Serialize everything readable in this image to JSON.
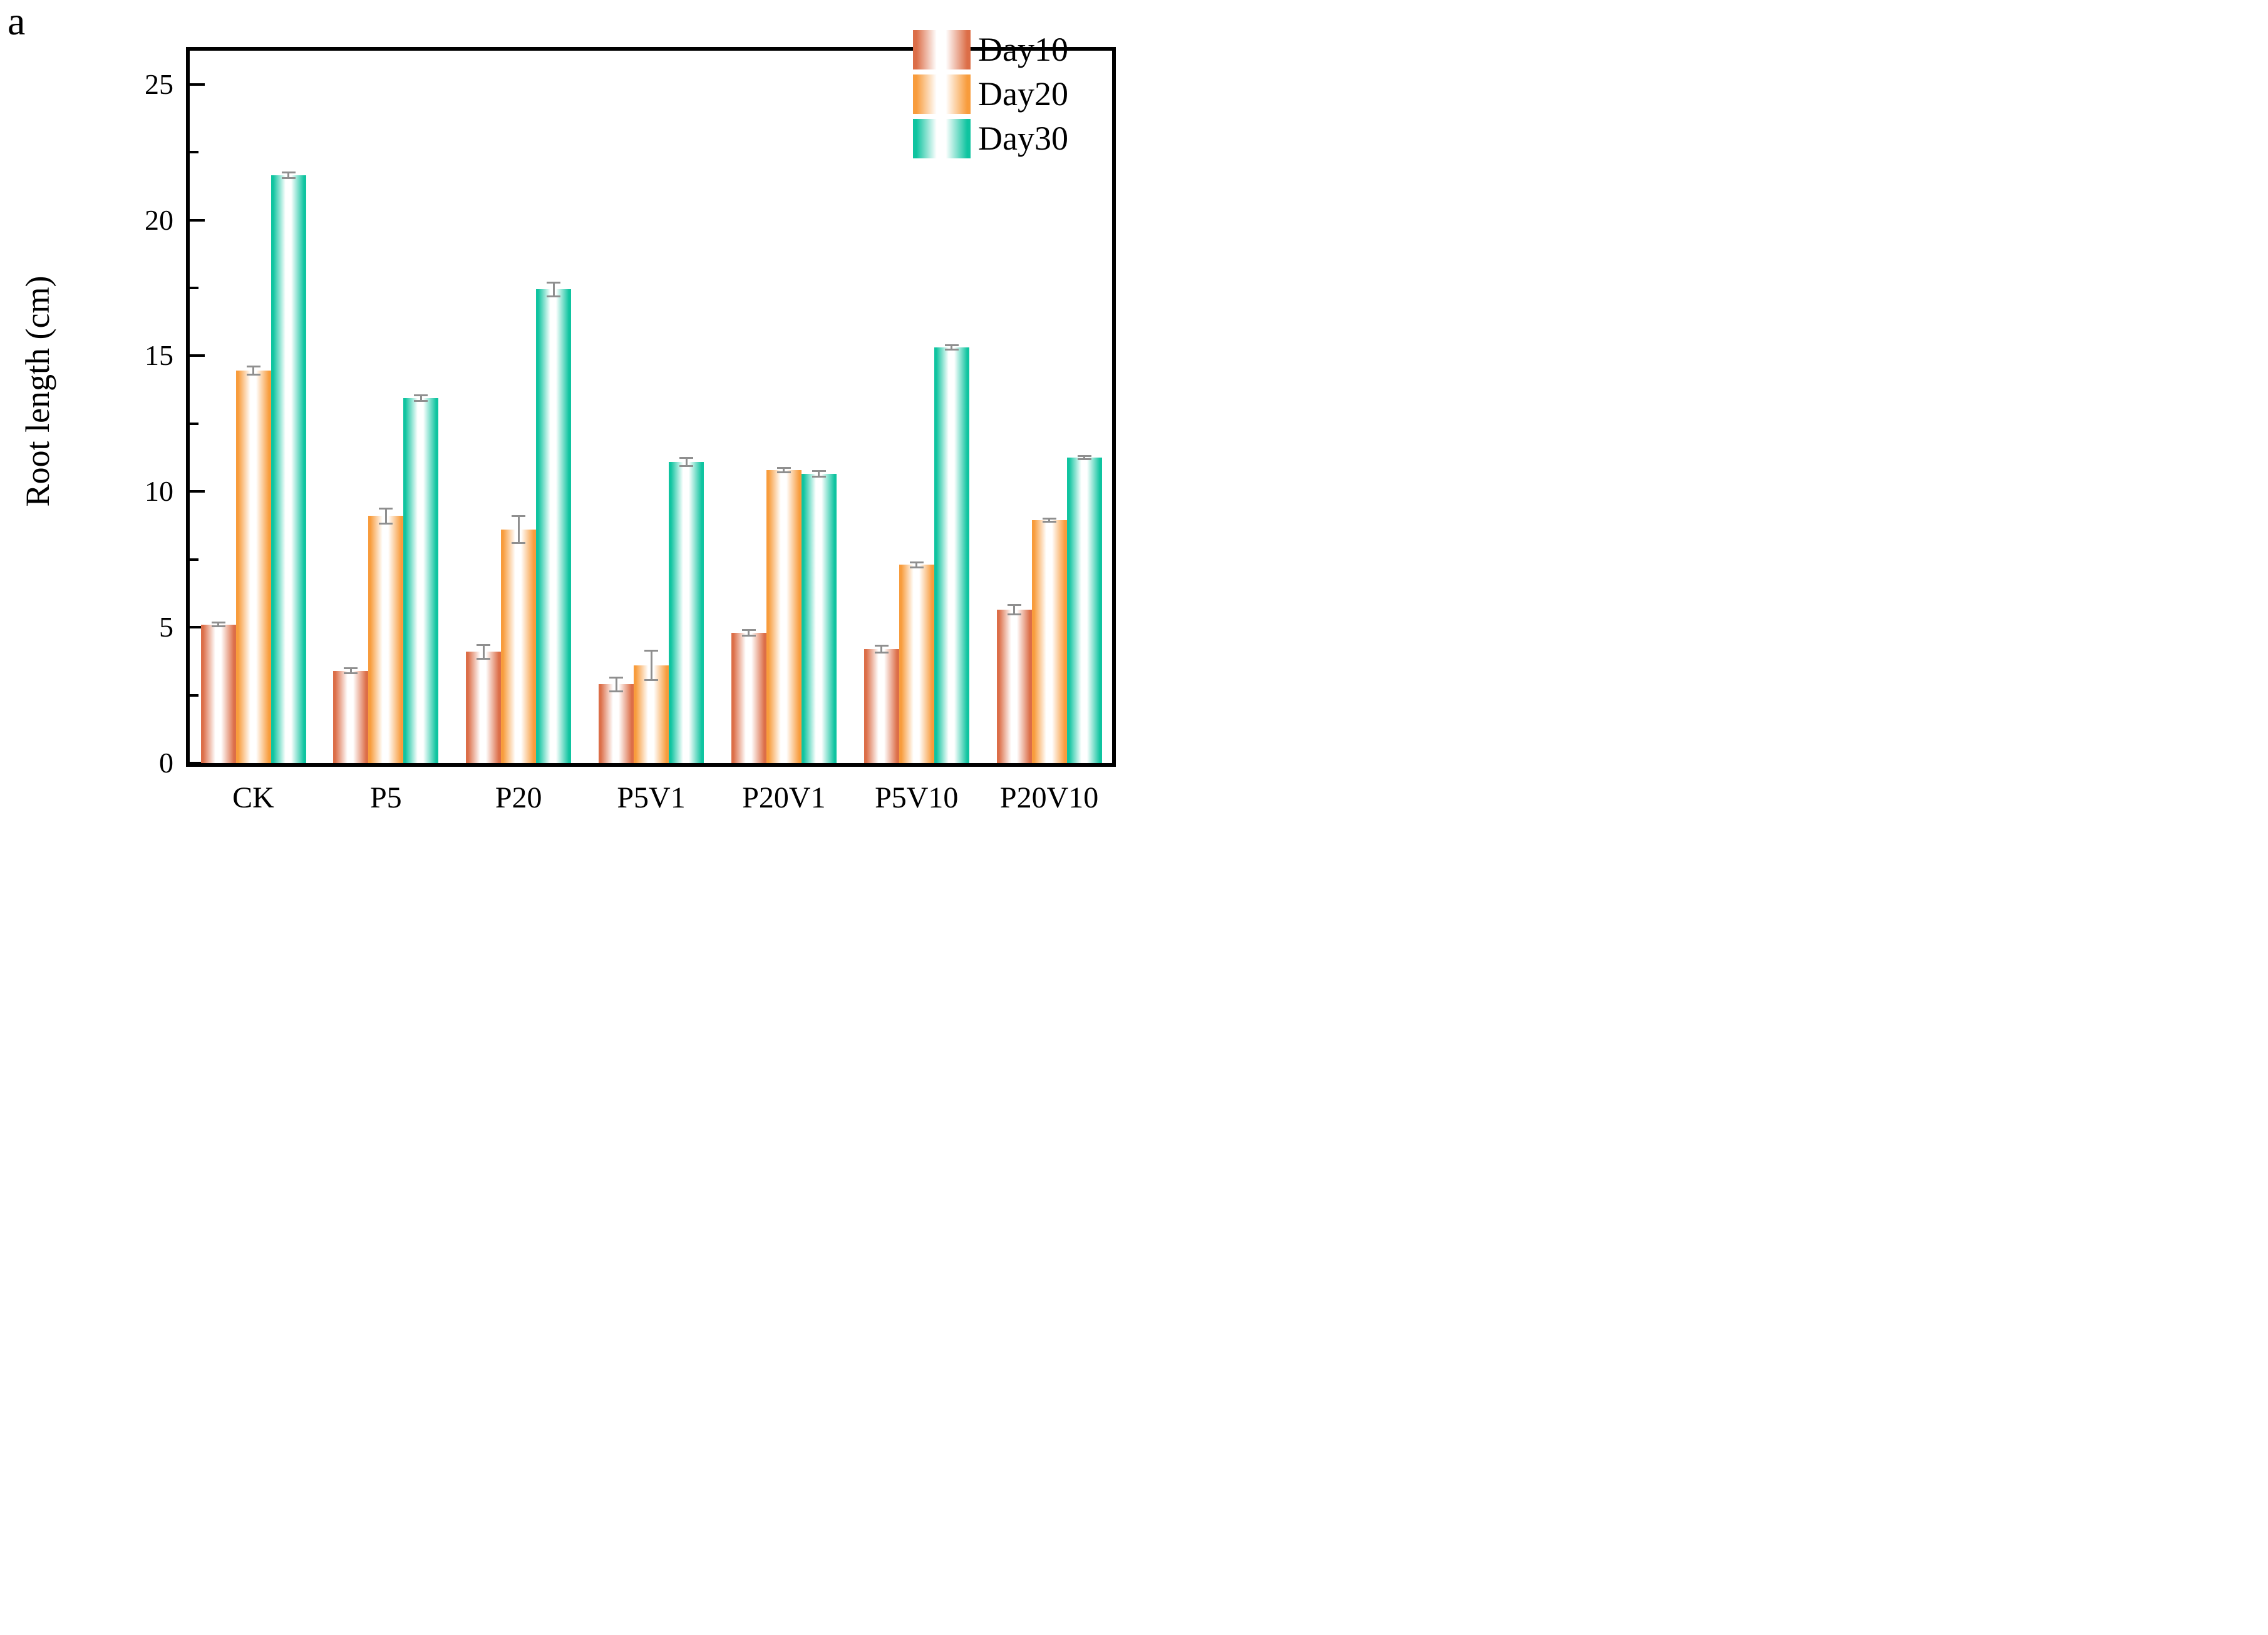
{
  "panel_label": "a",
  "chart_data": {
    "type": "bar",
    "title": "",
    "xlabel": "",
    "ylabel": "Root length (cm)",
    "ylim": [
      0,
      26.24
    ],
    "yticks_major": [
      0,
      5,
      10,
      15,
      20,
      25
    ],
    "ytick_labels": [
      "0",
      "5",
      "10",
      "15",
      "20",
      "25"
    ],
    "yticks_minor": [
      2.5,
      7.5,
      12.5,
      17.5,
      22.5
    ],
    "grid": false,
    "legend_position": "top-right-inside",
    "error_bar_color": "#8f8f8f",
    "categories": [
      "CK",
      "P5",
      "P20",
      "P5V1",
      "P20V1",
      "P5V10",
      "P20V10"
    ],
    "series": [
      {
        "name": "Day10",
        "color": "#DC6E48",
        "values": [
          5.1,
          3.4,
          4.1,
          2.9,
          4.8,
          4.2,
          5.65
        ],
        "errors": [
          0.07,
          0.1,
          0.25,
          0.25,
          0.1,
          0.12,
          0.18
        ]
      },
      {
        "name": "Day20",
        "color": "#F89C3C",
        "values": [
          14.45,
          9.1,
          8.6,
          3.6,
          10.8,
          7.3,
          8.95
        ],
        "errors": [
          0.15,
          0.27,
          0.5,
          0.55,
          0.08,
          0.1,
          0.06
        ]
      },
      {
        "name": "Day30",
        "color": "#0FC4A0",
        "values": [
          21.65,
          13.45,
          17.45,
          11.1,
          10.65,
          15.3,
          11.25
        ],
        "errors": [
          0.1,
          0.1,
          0.25,
          0.15,
          0.1,
          0.08,
          0.05
        ]
      }
    ]
  }
}
